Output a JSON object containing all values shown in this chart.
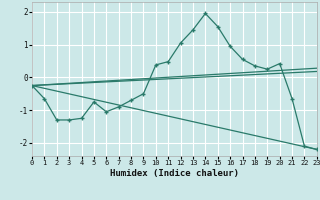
{
  "background_color": "#cce8e8",
  "grid_color": "#ffffff",
  "line_color": "#2a7a6a",
  "xlabel": "Humidex (Indice chaleur)",
  "xlim": [
    0,
    23
  ],
  "ylim": [
    -2.4,
    2.3
  ],
  "yticks": [
    -2,
    -1,
    0,
    1,
    2
  ],
  "xticks": [
    0,
    1,
    2,
    3,
    4,
    5,
    6,
    7,
    8,
    9,
    10,
    11,
    12,
    13,
    14,
    15,
    16,
    17,
    18,
    19,
    20,
    21,
    22,
    23
  ],
  "series_main": {
    "x": [
      0,
      1,
      2,
      3,
      4,
      5,
      6,
      7,
      8,
      9,
      10,
      11,
      12,
      13,
      14,
      15,
      16,
      17,
      18,
      19,
      20,
      21,
      22,
      23
    ],
    "y": [
      -0.25,
      -0.65,
      -1.3,
      -1.3,
      -1.25,
      -0.75,
      -1.05,
      -0.9,
      -0.7,
      -0.5,
      0.38,
      0.48,
      1.05,
      1.45,
      1.95,
      1.55,
      0.95,
      0.55,
      0.35,
      0.25,
      0.42,
      -0.65,
      -2.1,
      -2.2
    ]
  },
  "line1": {
    "x": [
      0,
      23
    ],
    "y": [
      -0.25,
      0.28
    ]
  },
  "line2": {
    "x": [
      0,
      23
    ],
    "y": [
      -0.25,
      0.18
    ]
  },
  "line3": {
    "x": [
      0,
      23
    ],
    "y": [
      -0.25,
      -2.2
    ]
  }
}
